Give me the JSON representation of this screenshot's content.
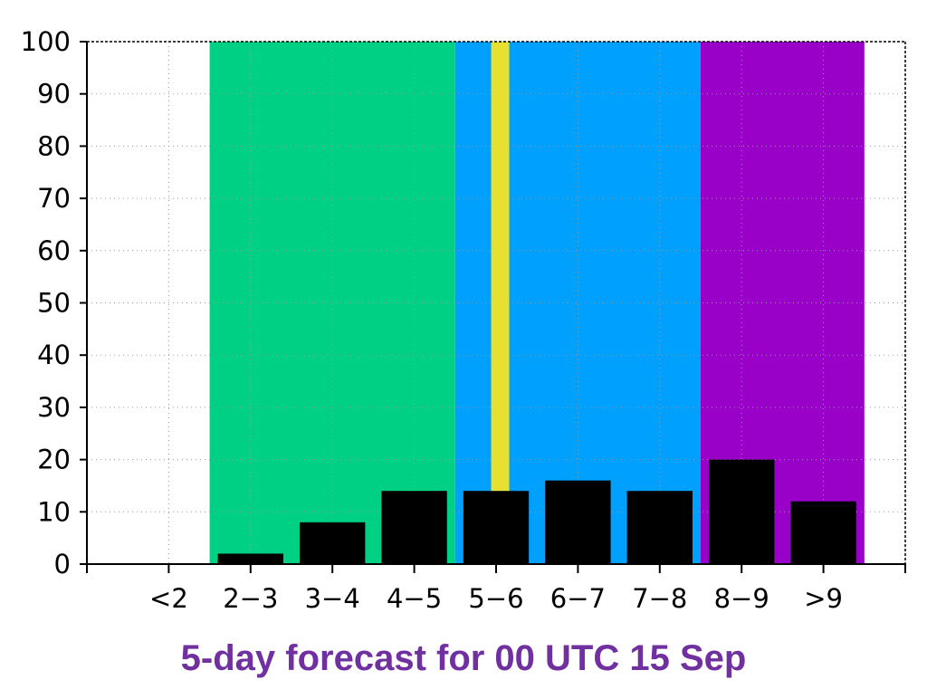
{
  "chart_data": {
    "type": "bar",
    "title": "5-day forecast for 00 UTC 15 Sep",
    "xlabel": "",
    "ylabel": "",
    "categories": [
      "<2",
      "2-3",
      "3-4",
      "4-5",
      "5-6",
      "6-7",
      "7-8",
      "8-9",
      ">9"
    ],
    "category_labels": [
      "<2",
      "2−3",
      "3−4",
      "4−5",
      "5−6",
      "6−7",
      "7−8",
      "8−9",
      ">9"
    ],
    "values": [
      0,
      2,
      8,
      14,
      14,
      16,
      14,
      20,
      12
    ],
    "ylim": [
      0,
      100
    ],
    "yticks": [
      0,
      10,
      20,
      30,
      40,
      50,
      60,
      70,
      80,
      90,
      100
    ],
    "grid": true,
    "bar_color": "#000000",
    "background_bands": [
      {
        "from": "2-3",
        "to": "4-5",
        "color": "#00d084"
      },
      {
        "from": "5-6",
        "to": "7-8",
        "color": "#00a0ff"
      },
      {
        "from": "8-9",
        "to": ">9",
        "color": "#9900c8"
      }
    ],
    "marker": {
      "category": "5-6",
      "offset": 0.55,
      "color": "#e8e030"
    }
  },
  "title_color": "#7030a0"
}
